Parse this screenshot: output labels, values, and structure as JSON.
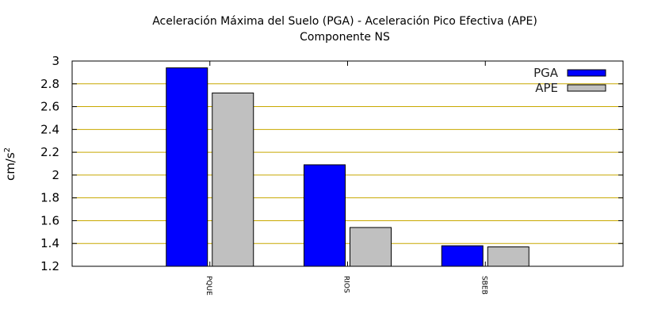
{
  "chart_data": {
    "type": "bar",
    "title": "Aceleración Máxima del Suelo (PGA) -  Aceleración Pico Efectiva (APE)",
    "subtitle": "Componente NS",
    "ylabel": "cm/s",
    "ylabel_sup": "2",
    "xlabel": "",
    "ylim": [
      1.2,
      3.0
    ],
    "yticks": [
      1.2,
      1.4,
      1.6,
      1.8,
      2.0,
      2.2,
      2.4,
      2.6,
      2.8,
      3.0
    ],
    "ytick_labels": [
      "1.2",
      "1.4",
      "1.6",
      "1.8",
      "2",
      "2.2",
      "2.4",
      "2.6",
      "2.8",
      "3"
    ],
    "categories": [
      "PQUE",
      "RIOS",
      "SBEB"
    ],
    "series": [
      {
        "name": "PGA",
        "values": [
          2.94,
          2.09,
          1.38
        ],
        "color": "#0000ff"
      },
      {
        "name": "APE",
        "values": [
          2.72,
          1.54,
          1.37
        ],
        "color": "#c0c0c0"
      }
    ],
    "grid": true,
    "grid_color": "#c8a800",
    "legend_position": "top-right"
  }
}
